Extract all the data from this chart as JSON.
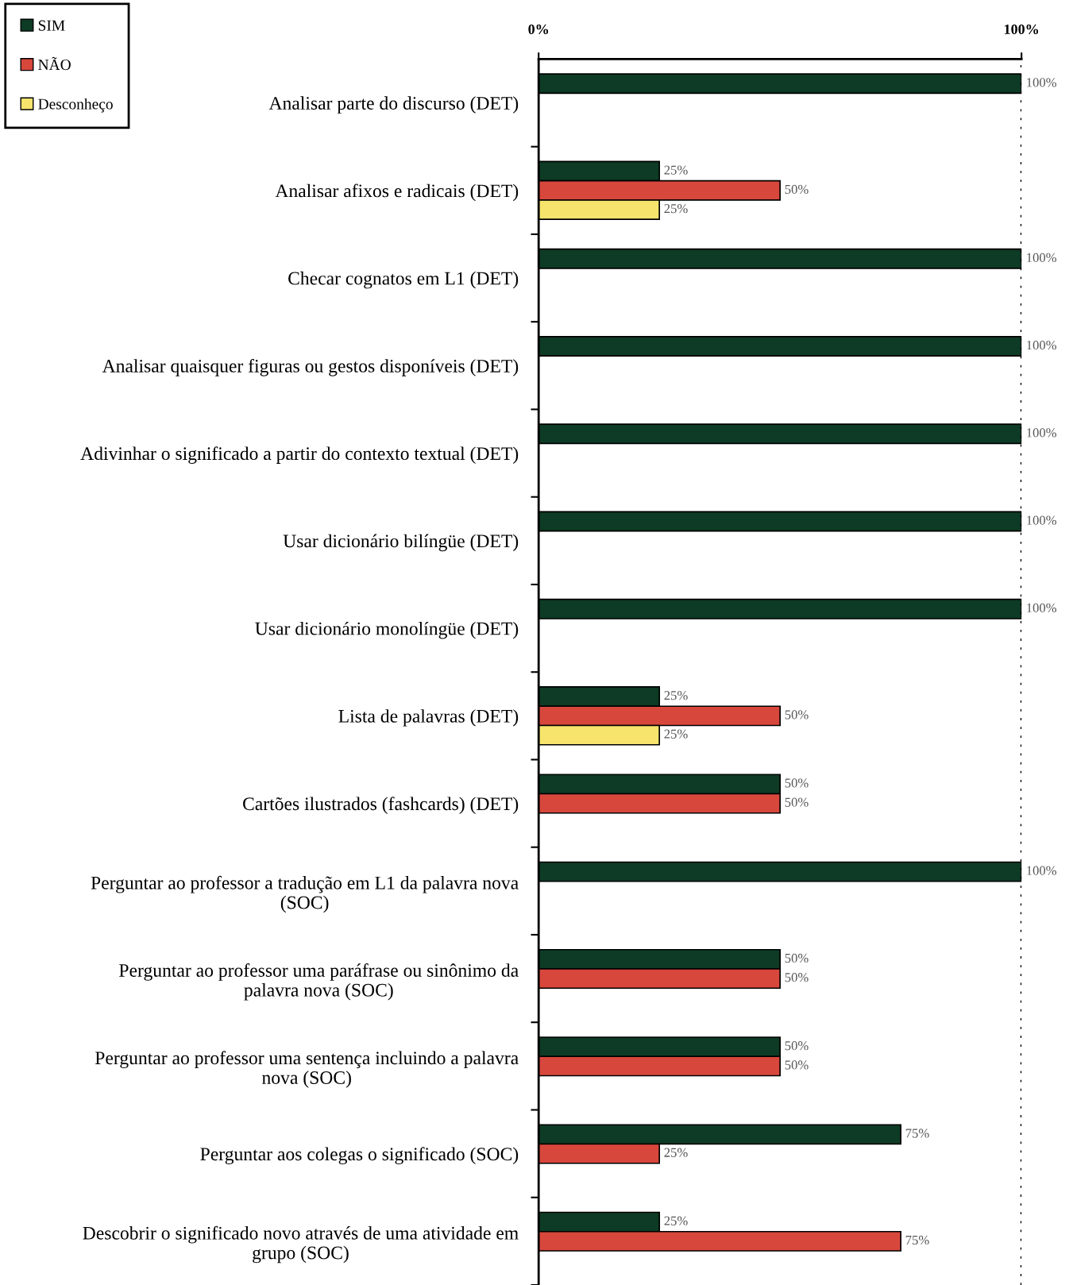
{
  "chart_data": {
    "type": "bar",
    "orientation": "horizontal",
    "categories": [
      "Analisar parte do discurso (DET)",
      "Analisar afixos e radicais (DET)",
      "Checar cognatos em L1 (DET)",
      "Analisar quaisquer figuras ou gestos disponíveis (DET)",
      "Adivinhar o significado a partir do contexto textual (DET)",
      "Usar dicionário bilíngüe (DET)",
      "Usar dicionário monolíngüe (DET)",
      "Lista de palavras (DET)",
      "Cartões ilustrados (fashcards) (DET)",
      "Perguntar ao professor a tradução em L1 da palavra nova\n(SOC)",
      "Perguntar ao professor uma paráfrase ou sinônimo da\npalavra nova (SOC)",
      "Perguntar ao professor uma sentença incluindo a palavra\nnova (SOC)",
      "Perguntar aos colegas o significado (SOC)",
      "Descobrir o significado novo através de uma atividade em\ngrupo (SOC)"
    ],
    "series": [
      {
        "name": "SIM",
        "color": "#0d3b25",
        "values": [
          100,
          25,
          100,
          100,
          100,
          100,
          100,
          25,
          50,
          100,
          50,
          50,
          75,
          25
        ],
        "value_labels": [
          "100%",
          "25%",
          "100%",
          "100%",
          "100%",
          "100%",
          "100%",
          "25%",
          "50%",
          "100%",
          "50%",
          "50%",
          "75%",
          "25%"
        ]
      },
      {
        "name": "NÃO",
        "color": "#d8473c",
        "values": [
          null,
          50,
          null,
          null,
          null,
          null,
          null,
          50,
          50,
          null,
          50,
          50,
          25,
          75
        ],
        "value_labels": [
          null,
          "50%",
          null,
          null,
          null,
          null,
          null,
          "50%",
          "50%",
          null,
          "50%",
          "50%",
          "25%",
          "75%"
        ]
      },
      {
        "name": "Desconheço",
        "color": "#f6e46c",
        "values": [
          null,
          25,
          null,
          null,
          null,
          null,
          null,
          25,
          null,
          null,
          null,
          null,
          null,
          null
        ],
        "value_labels": [
          null,
          "25%",
          null,
          null,
          null,
          null,
          null,
          "25%",
          null,
          null,
          null,
          null,
          null,
          null
        ]
      }
    ],
    "xlim": [
      0,
      100
    ],
    "xticks": [
      {
        "value": 0,
        "label": "0%"
      },
      {
        "value": 100,
        "label": "100%"
      }
    ],
    "ref_lines": [
      {
        "axis": "x",
        "value": 100,
        "line_style": "dotted",
        "color": "#000000"
      }
    ],
    "legend": "top left",
    "grid": false
  }
}
